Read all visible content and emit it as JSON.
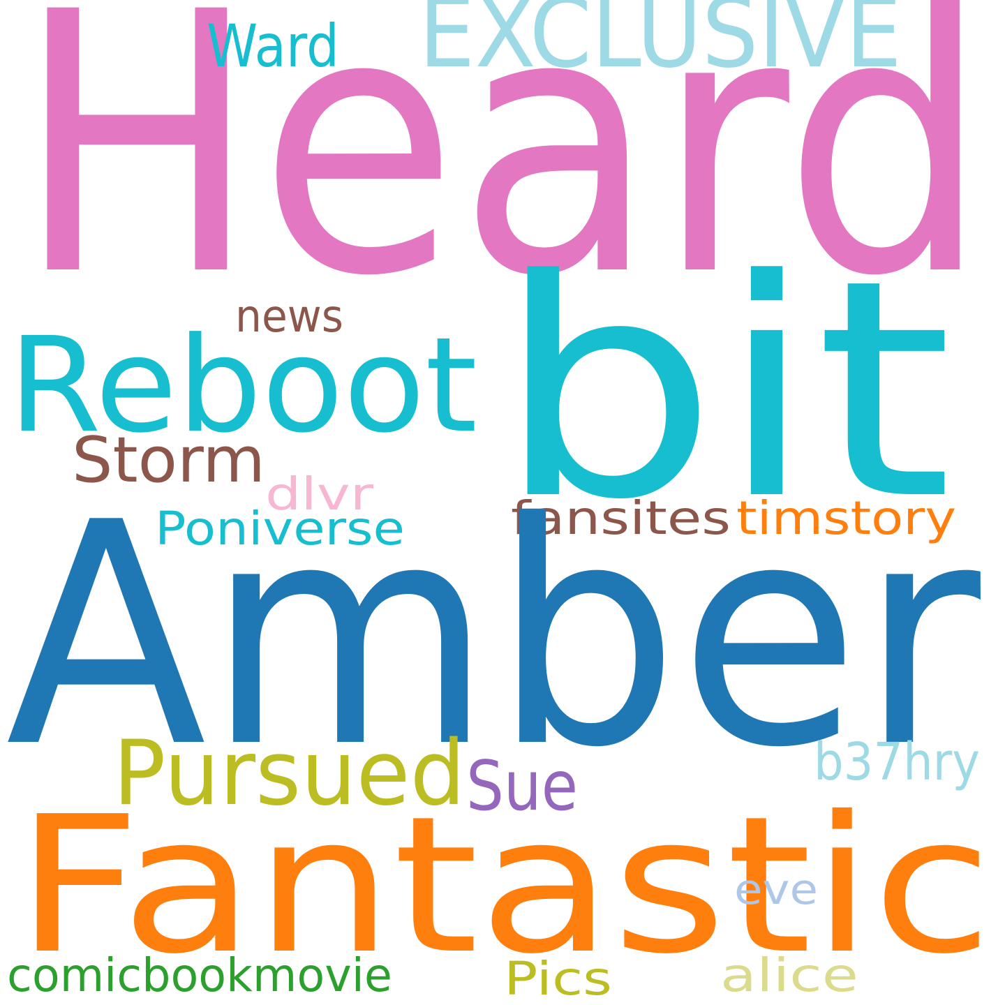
{
  "words": [
    {
      "text": "Heard",
      "color": "#e377c2"
    },
    {
      "text": "EXCLUSIVE",
      "color": "#9edae5"
    },
    {
      "text": "Ward",
      "color": "#17becf"
    },
    {
      "text": "bit",
      "color": "#17becf"
    },
    {
      "text": "news",
      "color": "#8c564b"
    },
    {
      "text": "Reboot",
      "color": "#17becf"
    },
    {
      "text": "Storm",
      "color": "#8c564b"
    },
    {
      "text": "dlvr",
      "color": "#f7b6d2"
    },
    {
      "text": "Poniverse",
      "color": "#17becf"
    },
    {
      "text": "fansites",
      "color": "#8c564b"
    },
    {
      "text": "timstory",
      "color": "#ff7f0e"
    },
    {
      "text": "Amber",
      "color": "#1f77b4"
    },
    {
      "text": "Pursued",
      "color": "#bcbd22"
    },
    {
      "text": "Sue",
      "color": "#9467bd"
    },
    {
      "text": "b37hry",
      "color": "#9edae5"
    },
    {
      "text": "Fantastic",
      "color": "#ff7f0e"
    },
    {
      "text": "eve",
      "color": "#aec7e8"
    },
    {
      "text": "comicbookmovie",
      "color": "#2ca02c"
    },
    {
      "text": "Pics",
      "color": "#bcbd22"
    },
    {
      "text": "alice",
      "color": "#dbdb8d"
    }
  ]
}
